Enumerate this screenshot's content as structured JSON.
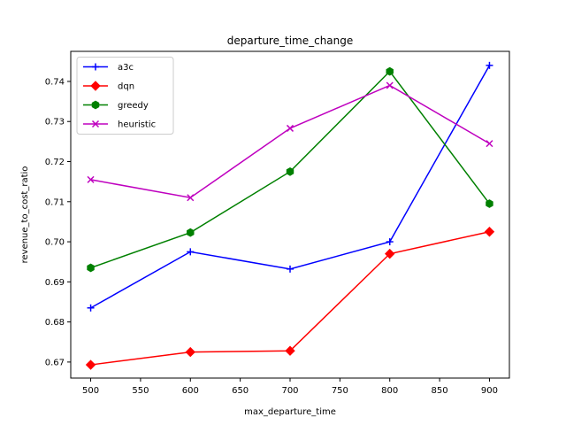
{
  "chart_data": {
    "type": "line",
    "title": "departure_time_change",
    "xlabel": "max_departure_time",
    "ylabel": "revenue_to_cost_ratio",
    "x": [
      500,
      600,
      700,
      800,
      900
    ],
    "xlim": [
      480,
      920
    ],
    "ylim": [
      0.666,
      0.7475
    ],
    "xticks": [
      500,
      550,
      600,
      650,
      700,
      750,
      800,
      850,
      900
    ],
    "yticks": [
      0.67,
      0.68,
      0.69,
      0.7,
      0.71,
      0.72,
      0.73,
      0.74
    ],
    "ytick_labels": [
      "0.67",
      "0.68",
      "0.69",
      "0.70",
      "0.71",
      "0.72",
      "0.73",
      "0.74"
    ],
    "grid": false,
    "legend_position": "top-left",
    "series": [
      {
        "name": "a3c",
        "color": "#0000ff",
        "marker": "plus",
        "values": [
          0.6835,
          0.6975,
          0.6932,
          0.7,
          0.744
        ]
      },
      {
        "name": "dqn",
        "color": "#ff0000",
        "marker": "diamond",
        "values": [
          0.6693,
          0.6725,
          0.6728,
          0.697,
          0.7025
        ]
      },
      {
        "name": "greedy",
        "color": "#008000",
        "marker": "hexagon",
        "values": [
          0.6935,
          0.7023,
          0.7175,
          0.7425,
          0.7095
        ]
      },
      {
        "name": "heuristic",
        "color": "#bf00bf",
        "marker": "x",
        "values": [
          0.7155,
          0.711,
          0.7283,
          0.739,
          0.7245
        ]
      }
    ]
  }
}
